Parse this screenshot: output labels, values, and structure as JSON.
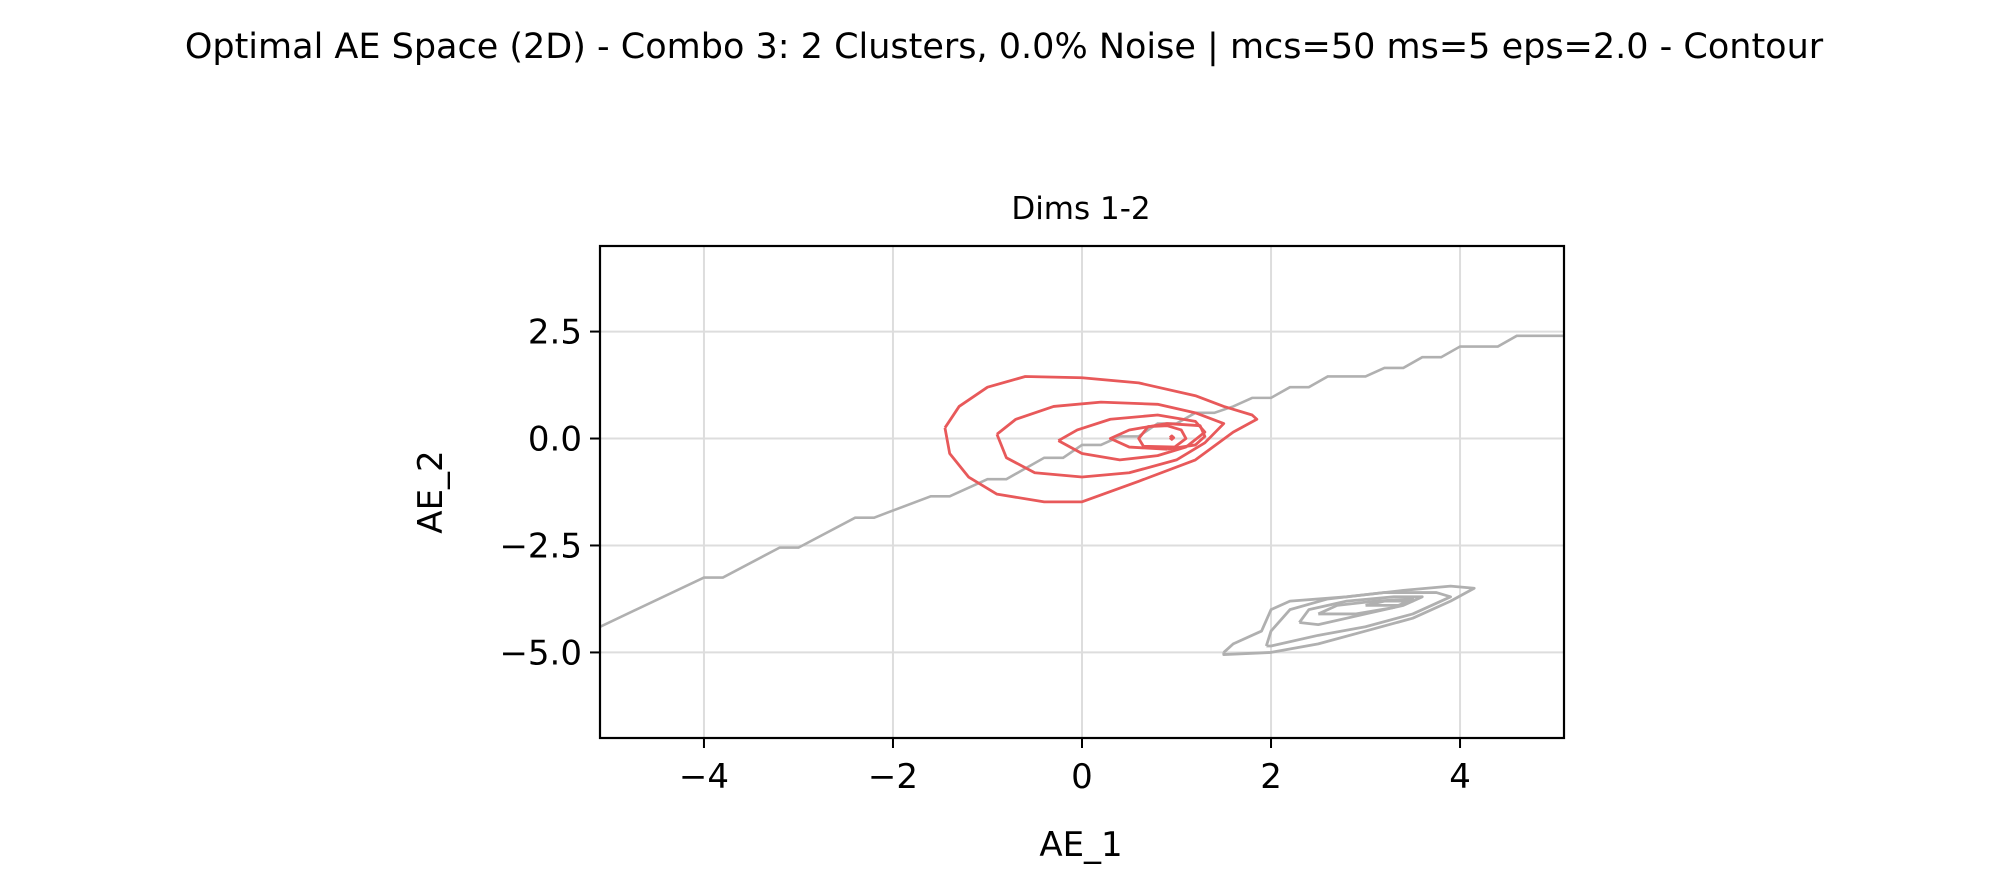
{
  "figure": {
    "suptitle": "Optimal AE Space (2D) - Combo 3: 2 Clusters, 0.0% Noise | mcs=50 ms=5 eps=2.0 - Contour"
  },
  "chart_data": {
    "type": "contour",
    "title": "Dims 1-2",
    "xlabel": "AE_1",
    "ylabel": "AE_2",
    "xlim": [
      -5.1,
      5.1
    ],
    "ylim": [
      -7.0,
      4.5
    ],
    "xticks": [
      -4,
      -2,
      0,
      2,
      4
    ],
    "xtick_labels": [
      "−4",
      "−2",
      "0",
      "2",
      "4"
    ],
    "yticks": [
      2.5,
      0.0,
      -2.5,
      -5.0
    ],
    "ytick_labels": [
      "2.5",
      "0.0",
      "−2.5",
      "−5.0"
    ],
    "grid": true,
    "colors": {
      "cluster_0": "#e8595a",
      "cluster_1": "#b0b0b0",
      "grid": "#dddddd"
    },
    "series": [
      {
        "cluster": 0,
        "color": "#e8595a",
        "contours": [
          [
            [
              -1.45,
              0.25
            ],
            [
              -1.3,
              0.75
            ],
            [
              -1.0,
              1.2
            ],
            [
              -0.6,
              1.45
            ],
            [
              0,
              1.42
            ],
            [
              0.6,
              1.3
            ],
            [
              1.2,
              1.0
            ],
            [
              1.5,
              0.75
            ],
            [
              1.8,
              0.55
            ],
            [
              1.85,
              0.45
            ],
            [
              1.6,
              0.15
            ],
            [
              1.2,
              -0.5
            ],
            [
              0.6,
              -1.0
            ],
            [
              0,
              -1.48
            ],
            [
              -0.4,
              -1.48
            ],
            [
              -0.9,
              -1.3
            ],
            [
              -1.2,
              -0.9
            ],
            [
              -1.4,
              -0.35
            ],
            [
              -1.45,
              0.25
            ]
          ],
          [
            [
              -0.9,
              0.1
            ],
            [
              -0.7,
              0.45
            ],
            [
              -0.3,
              0.75
            ],
            [
              0.2,
              0.85
            ],
            [
              0.8,
              0.8
            ],
            [
              1.2,
              0.6
            ],
            [
              1.5,
              0.35
            ],
            [
              1.3,
              -0.1
            ],
            [
              1.0,
              -0.5
            ],
            [
              0.5,
              -0.8
            ],
            [
              0,
              -0.9
            ],
            [
              -0.5,
              -0.8
            ],
            [
              -0.8,
              -0.45
            ],
            [
              -0.9,
              0.1
            ]
          ],
          [
            [
              -0.25,
              -0.05
            ],
            [
              -0.05,
              0.2
            ],
            [
              0.3,
              0.45
            ],
            [
              0.8,
              0.55
            ],
            [
              1.2,
              0.4
            ],
            [
              1.3,
              0.15
            ],
            [
              1.1,
              -0.2
            ],
            [
              0.8,
              -0.4
            ],
            [
              0.4,
              -0.5
            ],
            [
              0,
              -0.35
            ],
            [
              -0.25,
              -0.05
            ]
          ],
          [
            [
              0.9,
              -0.25
            ],
            [
              1.2,
              -0.15
            ],
            [
              1.3,
              0.05
            ],
            [
              1.25,
              0.3
            ],
            [
              0.9,
              0.35
            ],
            [
              0.5,
              0.2
            ],
            [
              0.3,
              0.0
            ],
            [
              0.5,
              -0.2
            ],
            [
              0.9,
              -0.25
            ]
          ],
          [
            [
              0.65,
              -0.18
            ],
            [
              0.98,
              -0.2
            ],
            [
              1.1,
              0.0
            ],
            [
              1.05,
              0.2
            ],
            [
              0.9,
              0.3
            ],
            [
              0.7,
              0.28
            ],
            [
              0.6,
              0.0
            ],
            [
              0.65,
              -0.18
            ]
          ],
          [
            [
              0.93,
              0.02
            ],
            [
              0.95,
              0.06
            ],
            [
              0.97,
              0.02
            ],
            [
              0.95,
              -0.02
            ],
            [
              0.93,
              0.02
            ]
          ]
        ]
      },
      {
        "cluster": 1,
        "color": "#b0b0b0",
        "contours": [
          [
            [
              1.5,
              -5.0
            ],
            [
              1.6,
              -4.8
            ],
            [
              1.9,
              -4.5
            ],
            [
              2.0,
              -4.0
            ],
            [
              2.2,
              -3.8
            ],
            [
              2.8,
              -3.7
            ],
            [
              3.4,
              -3.55
            ],
            [
              3.9,
              -3.45
            ],
            [
              4.15,
              -3.5
            ],
            [
              3.9,
              -3.8
            ],
            [
              3.5,
              -4.2
            ],
            [
              3.0,
              -4.5
            ],
            [
              2.5,
              -4.8
            ],
            [
              2.0,
              -5.0
            ],
            [
              1.5,
              -5.05
            ],
            [
              1.5,
              -5.0
            ]
          ],
          [
            [
              1.95,
              -4.85
            ],
            [
              2.0,
              -4.5
            ],
            [
              2.2,
              -4.0
            ],
            [
              2.6,
              -3.75
            ],
            [
              3.2,
              -3.6
            ],
            [
              3.75,
              -3.6
            ],
            [
              3.9,
              -3.7
            ],
            [
              3.5,
              -4.1
            ],
            [
              3.0,
              -4.4
            ],
            [
              2.5,
              -4.6
            ],
            [
              2.0,
              -4.85
            ],
            [
              1.95,
              -4.85
            ]
          ],
          [
            [
              2.3,
              -4.3
            ],
            [
              2.4,
              -4.0
            ],
            [
              2.8,
              -3.8
            ],
            [
              3.3,
              -3.7
            ],
            [
              3.6,
              -3.7
            ],
            [
              3.4,
              -3.9
            ],
            [
              3.0,
              -4.1
            ],
            [
              2.5,
              -4.35
            ],
            [
              2.3,
              -4.3
            ]
          ],
          [
            [
              2.5,
              -4.1
            ],
            [
              2.7,
              -3.9
            ],
            [
              3.1,
              -3.8
            ],
            [
              3.5,
              -3.75
            ],
            [
              3.3,
              -3.95
            ],
            [
              2.9,
              -4.1
            ],
            [
              2.5,
              -4.1
            ]
          ],
          [
            [
              3.0,
              -3.9
            ],
            [
              3.2,
              -3.8
            ],
            [
              3.5,
              -3.8
            ],
            [
              3.35,
              -3.9
            ],
            [
              3.0,
              -3.9
            ]
          ]
        ]
      }
    ],
    "boundary_line": {
      "color": "#b0b0b0",
      "points": [
        [
          -5.1,
          -4.4
        ],
        [
          -4.0,
          -3.25
        ],
        [
          -3.8,
          -3.25
        ],
        [
          -3.2,
          -2.55
        ],
        [
          -3.0,
          -2.55
        ],
        [
          -2.4,
          -1.85
        ],
        [
          -2.2,
          -1.85
        ],
        [
          -1.6,
          -1.35
        ],
        [
          -1.4,
          -1.35
        ],
        [
          -1.0,
          -0.95
        ],
        [
          -0.8,
          -0.95
        ],
        [
          -0.4,
          -0.45
        ],
        [
          -0.2,
          -0.45
        ],
        [
          0.0,
          -0.15
        ],
        [
          0.2,
          -0.15
        ],
        [
          0.4,
          0.05
        ],
        [
          0.6,
          0.05
        ],
        [
          0.8,
          0.35
        ],
        [
          1.0,
          0.35
        ],
        [
          1.2,
          0.6
        ],
        [
          1.4,
          0.6
        ],
        [
          1.6,
          0.75
        ],
        [
          1.8,
          0.95
        ],
        [
          2.0,
          0.95
        ],
        [
          2.2,
          1.2
        ],
        [
          2.4,
          1.2
        ],
        [
          2.6,
          1.45
        ],
        [
          3.0,
          1.45
        ],
        [
          3.2,
          1.65
        ],
        [
          3.4,
          1.65
        ],
        [
          3.6,
          1.9
        ],
        [
          3.8,
          1.9
        ],
        [
          4.0,
          2.15
        ],
        [
          4.4,
          2.15
        ],
        [
          4.6,
          2.4
        ],
        [
          5.1,
          2.4
        ]
      ]
    }
  }
}
